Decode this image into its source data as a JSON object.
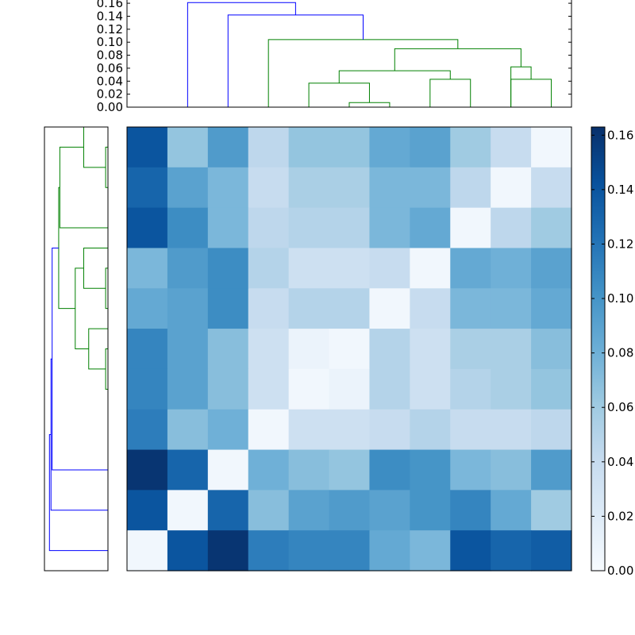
{
  "chart_data": [
    {
      "type": "dendrogram",
      "orientation": "top",
      "ylim": [
        0,
        0.165
      ],
      "ytick_labels": [
        "0.00",
        "0.02",
        "0.04",
        "0.06",
        "0.08",
        "0.10",
        "0.12",
        "0.14",
        "0.16"
      ],
      "ytick_values": [
        0,
        0.02,
        0.04,
        0.06,
        0.08,
        0.1,
        0.12,
        0.14,
        0.16
      ],
      "links": [
        {
          "left": 6,
          "right": 7,
          "height": 0.007,
          "color": "#008000"
        },
        {
          "left": 5,
          "right": 6.5,
          "height": 0.037,
          "color": "#008000"
        },
        {
          "left": 8,
          "right": 9,
          "height": 0.043,
          "color": "#008000"
        },
        {
          "left": 10,
          "right": 11,
          "height": 0.043,
          "color": "#008000"
        },
        {
          "left": 5.75,
          "right": 8.5,
          "height": 0.056,
          "color": "#008000"
        },
        {
          "left": 10,
          "right": 10.5,
          "height": 0.062,
          "color": "#008000"
        },
        {
          "left": 7.125,
          "right": 10.25,
          "height": 0.09,
          "color": "#008000"
        },
        {
          "left": 4,
          "right": 8.6875,
          "height": 0.104,
          "color": "#008000"
        },
        {
          "left": 3,
          "right": 6.34375,
          "height": 0.142,
          "color": "#0000ff"
        },
        {
          "left": 2,
          "right": 4.671875,
          "height": 0.161,
          "color": "#0000ff"
        }
      ]
    },
    {
      "type": "dendrogram",
      "orientation": "left",
      "xlim": [
        0,
        0.165
      ],
      "links": [
        {
          "top": 1,
          "bottom": 2,
          "height": 0.006,
          "color": "#008000"
        },
        {
          "top": 0.5,
          "bottom": 1.5,
          "height": 0.063,
          "color": "#008000"
        },
        {
          "top": 1,
          "bottom": 3,
          "height": 0.125,
          "color": "#008000"
        },
        {
          "top": 4,
          "bottom": 5,
          "height": 0.006,
          "color": "#008000"
        },
        {
          "top": 3.5,
          "bottom": 4.5,
          "height": 0.063,
          "color": "#008000"
        },
        {
          "top": 6,
          "bottom": 7,
          "height": 0.006,
          "color": "#008000"
        },
        {
          "top": 5.5,
          "bottom": 6.5,
          "height": 0.05,
          "color": "#008000"
        },
        {
          "top": 4,
          "bottom": 6,
          "height": 0.085,
          "color": "#008000"
        },
        {
          "top": 2,
          "bottom": 5,
          "height": 0.128,
          "color": "#008000"
        },
        {
          "top": 3.5,
          "bottom": 9,
          "height": 0.145,
          "color": "#0000ff"
        },
        {
          "top": 6.25,
          "bottom": 10,
          "height": 0.148,
          "color": "#0000ff"
        },
        {
          "top": 8.125,
          "bottom": 11,
          "height": 0.152,
          "color": "#0000ff"
        }
      ]
    },
    {
      "type": "heatmap",
      "rows": 11,
      "cols": 11,
      "vmin": 0,
      "vmax": 0.163,
      "colormap": "Blues",
      "values": [
        [
          0.14,
          0.065,
          0.095,
          0.045,
          0.065,
          0.065,
          0.085,
          0.09,
          0.06,
          0.04,
          0.005
        ],
        [
          0.13,
          0.09,
          0.075,
          0.04,
          0.055,
          0.055,
          0.075,
          0.075,
          0.045,
          0.005,
          0.04
        ],
        [
          0.14,
          0.105,
          0.075,
          0.045,
          0.05,
          0.05,
          0.075,
          0.085,
          0.005,
          0.045,
          0.06
        ],
        [
          0.075,
          0.095,
          0.105,
          0.05,
          0.035,
          0.035,
          0.04,
          0.005,
          0.085,
          0.08,
          0.09
        ],
        [
          0.085,
          0.09,
          0.105,
          0.04,
          0.05,
          0.05,
          0.005,
          0.04,
          0.075,
          0.075,
          0.085
        ],
        [
          0.11,
          0.09,
          0.07,
          0.035,
          0.01,
          0.005,
          0.05,
          0.035,
          0.055,
          0.055,
          0.07
        ],
        [
          0.11,
          0.09,
          0.07,
          0.035,
          0.005,
          0.01,
          0.05,
          0.035,
          0.05,
          0.055,
          0.065
        ],
        [
          0.115,
          0.07,
          0.08,
          0.005,
          0.035,
          0.035,
          0.04,
          0.05,
          0.04,
          0.04,
          0.045
        ],
        [
          0.16,
          0.13,
          0.005,
          0.08,
          0.07,
          0.065,
          0.105,
          0.1,
          0.075,
          0.07,
          0.095
        ],
        [
          0.14,
          0.005,
          0.13,
          0.07,
          0.09,
          0.095,
          0.09,
          0.1,
          0.11,
          0.085,
          0.06
        ],
        [
          0.005,
          0.14,
          0.16,
          0.115,
          0.11,
          0.11,
          0.085,
          0.075,
          0.14,
          0.13,
          0.135
        ]
      ]
    },
    {
      "type": "colorbar",
      "colormap": "Blues",
      "range": [
        0,
        0.163
      ],
      "tick_labels": [
        "0.00",
        "0.02",
        "0.04",
        "0.06",
        "0.08",
        "0.10",
        "0.12",
        "0.14",
        "0.16"
      ],
      "tick_values": [
        0,
        0.02,
        0.04,
        0.06,
        0.08,
        0.1,
        0.12,
        0.14,
        0.16
      ]
    }
  ]
}
